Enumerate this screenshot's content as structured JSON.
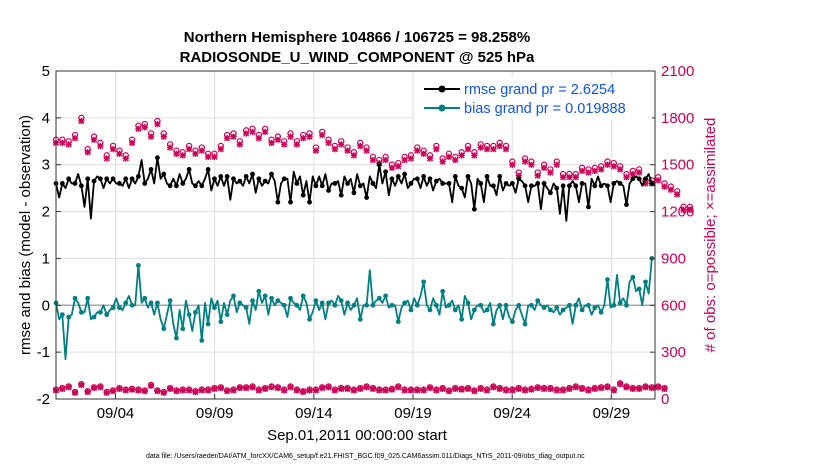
{
  "chart_data": {
    "type": "line",
    "title_line1": "Northern Hemisphere 104866 / 106725 = 98.258%",
    "title_line2": "RADIOSONDE_U_WIND_COMPONENT @ 525 hPa",
    "xlabel": "Sep.01,2011 00:00:00 start",
    "ylabel_left": "rmse and bias (model - observation)",
    "ylabel_right": "# of obs: o=possible; ×=assimilated",
    "footnote": "data file: /Users/raeder/DAI/ATM_forcXX/CAM6_setup/f.e21.FHIST_BGC.f09_025.CAM6assim.011/Diags_NTrS_2011-09/obs_diag_output.nc",
    "x_ticks": [
      "09/04",
      "09/09",
      "09/14",
      "09/19",
      "09/24",
      "09/29"
    ],
    "x_tick_days": [
      4,
      9,
      14,
      19,
      24,
      29
    ],
    "xlim_days": [
      1,
      31.2
    ],
    "ylim_left": [
      -2,
      5
    ],
    "yticks_left": [
      "-2",
      "-1",
      "0",
      "1",
      "2",
      "3",
      "4",
      "5"
    ],
    "ylim_right": [
      0,
      2100
    ],
    "yticks_right": [
      "0",
      "300",
      "600",
      "900",
      "1200",
      "1500",
      "1800",
      "2100"
    ],
    "colors": {
      "rmse": "#000000",
      "bias": "#008080",
      "obs": "#cc0055",
      "legend_text": "#1155dd",
      "zero_line": "#999999",
      "grid": "#dddddd"
    },
    "legend": [
      {
        "label": "rmse grand pr = 2.6254",
        "series": "rmse"
      },
      {
        "label": "bias grand pr = 0.019888",
        "series": "bias"
      }
    ],
    "series": [
      {
        "name": "rmse",
        "axis": "left",
        "values": [
          2.6,
          2.3,
          2.6,
          2.5,
          2.7,
          2.6,
          2.6,
          2.8,
          2.55,
          2.1,
          2.7,
          1.85,
          2.65,
          2.75,
          2.7,
          2.5,
          2.7,
          2.6,
          2.7,
          2.6,
          2.6,
          2.55,
          2.7,
          2.5,
          2.7,
          2.6,
          2.75,
          3.1,
          2.6,
          2.7,
          2.9,
          2.6,
          3.15,
          2.7,
          2.8,
          2.6,
          2.55,
          2.7,
          2.55,
          2.8,
          2.6,
          2.7,
          2.9,
          2.6,
          2.55,
          2.65,
          2.55,
          2.7,
          2.9,
          2.45,
          2.7,
          2.55,
          2.75,
          2.55,
          2.75,
          2.25,
          2.7,
          2.6,
          2.65,
          2.55,
          2.75,
          2.6,
          2.8,
          2.4,
          2.7,
          2.55,
          2.65,
          2.6,
          2.8,
          2.65,
          2.2,
          2.6,
          2.7,
          2.7,
          2.2,
          2.85,
          2.6,
          2.75,
          2.35,
          2.65,
          2.2,
          2.75,
          2.55,
          2.75,
          2.55,
          2.8,
          2.45,
          2.6,
          2.6,
          2.65,
          2.35,
          2.75,
          2.6,
          2.7,
          2.4,
          2.8,
          2.55,
          2.6,
          2.3,
          2.75,
          2.6,
          2.5,
          3.0,
          2.6,
          2.85,
          2.35,
          2.7,
          2.55,
          2.75,
          2.6,
          2.8,
          2.5,
          2.6,
          2.7,
          2.7,
          2.5,
          2.75,
          2.55,
          2.7,
          2.45,
          2.65,
          2.7,
          2.6,
          2.6,
          2.6,
          2.2,
          2.75,
          2.55,
          2.5,
          2.3,
          2.75,
          2.6,
          2.05,
          2.7,
          2.6,
          2.2,
          2.75,
          2.55,
          2.55,
          2.35,
          2.75,
          2.45,
          2.6,
          2.55,
          2.6,
          2.4,
          2.7,
          2.65,
          2.55,
          2.2,
          2.55,
          2.55,
          2.6,
          2.05,
          2.6,
          2.5,
          2.4,
          2.6,
          2.5,
          1.95,
          2.55,
          1.8,
          2.55,
          2.65,
          2.55,
          2.2,
          2.6,
          2.6,
          2.1,
          2.7,
          2.55,
          2.75,
          2.55,
          2.6,
          2.55,
          2.2,
          2.6,
          2.65,
          2.6,
          2.55,
          2.15,
          2.6,
          2.7,
          2.75,
          2.7,
          2.55,
          2.7,
          2.8,
          2.6,
          2.55
        ]
      },
      {
        "name": "bias",
        "axis": "left",
        "values": [
          0.05,
          -0.3,
          -0.2,
          -1.15,
          -0.25,
          -0.2,
          0.15,
          0.05,
          -0.15,
          -0.15,
          0.15,
          -0.3,
          -0.25,
          -0.15,
          -0.15,
          0.0,
          -0.2,
          -0.1,
          -0.05,
          0.15,
          -0.05,
          -0.1,
          0.05,
          0.2,
          0.0,
          0.0,
          0.85,
          0.05,
          0.15,
          -0.05,
          0.05,
          -0.2,
          0.05,
          -0.3,
          -0.5,
          -0.2,
          0.1,
          -0.4,
          -0.7,
          -0.1,
          -0.5,
          0.1,
          -0.2,
          -0.55,
          -0.15,
          0.0,
          -0.75,
          0.05,
          -0.4,
          0.15,
          -0.05,
          0.1,
          -0.35,
          0.05,
          -0.2,
          0.1,
          0.2,
          -0.15,
          0.05,
          0.0,
          -0.05,
          -0.4,
          0.1,
          -0.1,
          0.3,
          0.05,
          0.2,
          -0.2,
          0.15,
          0.0,
          0.1,
          0.05,
          0.0,
          -0.25,
          0.15,
          0.05,
          0.0,
          -0.1,
          0.2,
          0.05,
          -0.3,
          -0.15,
          0.1,
          -0.1,
          0.05,
          -0.3,
          0.05,
          0.1,
          0.0,
          0.2,
          0.1,
          -0.2,
          0.05,
          -0.1,
          0.0,
          0.15,
          -0.3,
          0.0,
          0.0,
          0.75,
          0.0,
          0.1,
          0.15,
          0.05,
          0.2,
          -0.05,
          0.0,
          0.0,
          -0.35,
          -0.05,
          0.05,
          0.1,
          -0.1,
          0.15,
          0.0,
          0.2,
          0.5,
          0.0,
          -0.1,
          0.15,
          0.0,
          -0.2,
          0.3,
          -0.05,
          0.0,
          0.1,
          -0.1,
          0.0,
          -0.3,
          0.2,
          0.05,
          -0.3,
          -0.1,
          0.0,
          0.0,
          -0.15,
          -0.1,
          0.05,
          -0.4,
          -0.1,
          0.0,
          -0.3,
          0.0,
          -0.25,
          -0.35,
          -0.1,
          0.0,
          -0.2,
          -0.4,
          0.0,
          0.0,
          -0.1,
          0.1,
          0.0,
          -0.05,
          0.0,
          -0.1,
          -0.15,
          -0.05,
          -0.2,
          -0.1,
          -0.05,
          0.0,
          -0.4,
          0.0,
          0.15,
          -0.1,
          0.0,
          0.0,
          -0.2,
          -0.05,
          0.0,
          -0.15,
          0.0,
          0.55,
          -0.05,
          0.0,
          0.65,
          0.05,
          0.15,
          0.0,
          0.5,
          0.6,
          0.3,
          0.35,
          0.0,
          0.5,
          0.25,
          1.0
        ]
      },
      {
        "name": "obs_possible",
        "axis": "right",
        "values": [
          1660,
          1680,
          1660,
          1680,
          1650,
          1670,
          1690,
          1640,
          1800,
          1690,
          1600,
          1660,
          1680,
          1660,
          1640,
          1600,
          1560,
          1610,
          1620,
          1580,
          1590,
          1620,
          1560,
          1600,
          1660,
          1780,
          1750,
          1720,
          1760,
          1750,
          1700,
          1740,
          1780,
          1760,
          1700,
          1670,
          1630,
          1620,
          1590,
          1640,
          1580,
          1610,
          1620,
          1580,
          1590,
          1610,
          1610,
          1630,
          1570,
          1620,
          1570,
          1580,
          1620,
          1640,
          1690,
          1700,
          1700,
          1690,
          1650,
          1680,
          1720,
          1760,
          1730,
          1700,
          1690,
          1700,
          1730,
          1670,
          1660,
          1640,
          1680,
          1690,
          1650,
          1700,
          1700,
          1680,
          1650,
          1690,
          1690,
          1640,
          1700,
          1670,
          1610,
          1650,
          1710,
          1700,
          1660,
          1640,
          1620,
          1600,
          1650,
          1590,
          1610,
          1580,
          1580,
          1600,
          1640,
          1630,
          1610,
          1580,
          1550,
          1560,
          1530,
          1590,
          1550,
          1550,
          1500,
          1550,
          1510,
          1560,
          1550,
          1590,
          1560,
          1550,
          1610,
          1580,
          1590,
          1610,
          1560,
          1580,
          1620,
          1600,
          1540,
          1580,
          1570,
          1560,
          1550,
          1520,
          1580,
          1550,
          1620,
          1620,
          1580,
          1640,
          1630,
          1590,
          1620,
          1640,
          1620,
          1600,
          1640,
          1580,
          1620,
          1560,
          1520,
          1520,
          1450,
          1450,
          1540,
          1500,
          1520,
          1500,
          1450,
          1460,
          1500,
          1480,
          1470,
          1460,
          1520,
          1480,
          1440,
          1470,
          1440,
          1470,
          1440,
          1510,
          1480,
          1520,
          1470,
          1510,
          1480,
          1540,
          1490,
          1480,
          1520,
          1490,
          1510,
          1460,
          1490,
          1430,
          1440,
          1410,
          1460,
          1420,
          1470,
          1440,
          1400,
          1430,
          1400,
          1380,
          1420,
          1360,
          1380,
          1410,
          1360,
          1390,
          1330,
          1260,
          1230,
          1250,
          1230
        ]
      },
      {
        "name": "obs_assimilated",
        "axis": "right",
        "values": [
          1640,
          1660,
          1640,
          1660,
          1630,
          1650,
          1670,
          1620,
          1780,
          1670,
          1580,
          1640,
          1660,
          1640,
          1620,
          1580,
          1540,
          1590,
          1600,
          1560,
          1570,
          1600,
          1540,
          1580,
          1640,
          1760,
          1730,
          1700,
          1740,
          1730,
          1680,
          1720,
          1760,
          1740,
          1680,
          1650,
          1610,
          1600,
          1570,
          1620,
          1560,
          1590,
          1600,
          1560,
          1570,
          1590,
          1590,
          1610,
          1550,
          1600,
          1550,
          1560,
          1600,
          1620,
          1670,
          1680,
          1680,
          1670,
          1630,
          1660,
          1700,
          1740,
          1710,
          1680,
          1670,
          1680,
          1710,
          1650,
          1640,
          1620,
          1660,
          1670,
          1630,
          1680,
          1680,
          1660,
          1630,
          1670,
          1670,
          1620,
          1680,
          1650,
          1590,
          1630,
          1690,
          1680,
          1640,
          1620,
          1600,
          1580,
          1630,
          1570,
          1590,
          1560,
          1560,
          1580,
          1620,
          1610,
          1590,
          1560,
          1530,
          1540,
          1510,
          1570,
          1530,
          1530,
          1480,
          1530,
          1490,
          1540,
          1530,
          1570,
          1540,
          1530,
          1590,
          1560,
          1570,
          1590,
          1540,
          1560,
          1600,
          1580,
          1520,
          1560,
          1550,
          1540,
          1530,
          1500,
          1560,
          1530,
          1600,
          1600,
          1560,
          1620,
          1610,
          1570,
          1600,
          1620,
          1600,
          1580,
          1620,
          1560,
          1600,
          1540,
          1500,
          1500,
          1430,
          1430,
          1520,
          1480,
          1500,
          1480,
          1430,
          1440,
          1480,
          1460,
          1450,
          1440,
          1500,
          1460,
          1420,
          1450,
          1420,
          1450,
          1420,
          1490,
          1460,
          1500,
          1450,
          1490,
          1460,
          1520,
          1470,
          1460,
          1500,
          1470,
          1490,
          1440,
          1470,
          1410,
          1420,
          1390,
          1440,
          1400,
          1450,
          1420,
          1380,
          1410,
          1380,
          1360,
          1400,
          1340,
          1360,
          1390,
          1340,
          1370,
          1310,
          1240,
          1210,
          1230,
          1210
        ]
      },
      {
        "name": "obs_low_possible",
        "axis": "right",
        "values": [
          60,
          50,
          70,
          55,
          80,
          60,
          45,
          65,
          95,
          70,
          50,
          55,
          75,
          60,
          80,
          60,
          45,
          75,
          55,
          60,
          70,
          45,
          60,
          75,
          65,
          90,
          60,
          75,
          55,
          70,
          90,
          70,
          55,
          70,
          45,
          70,
          70,
          80,
          55,
          70,
          60,
          75,
          60,
          70,
          50,
          60,
          60,
          80,
          60,
          70,
          70,
          90,
          75,
          70,
          55,
          60,
          60,
          65,
          75,
          55,
          75,
          65,
          80,
          55,
          60,
          70,
          70,
          60,
          80,
          60,
          75,
          55,
          60,
          65,
          80,
          70,
          60,
          75,
          50,
          70,
          60,
          70,
          60,
          70,
          75,
          70,
          80,
          60,
          60,
          65,
          70,
          75,
          70,
          60,
          60,
          55,
          70,
          75,
          80,
          60,
          70,
          75,
          60,
          80,
          60,
          70,
          65,
          60,
          80,
          75,
          60,
          70,
          60,
          70,
          60,
          80,
          60,
          70,
          75,
          70,
          60,
          70,
          70,
          60,
          55,
          75,
          70,
          60,
          65,
          50,
          70,
          60,
          55,
          60,
          70,
          75,
          60,
          70,
          80,
          70,
          70,
          60,
          60,
          75,
          60,
          70,
          70,
          60,
          60,
          75,
          65,
          70,
          75,
          60,
          70,
          55,
          70,
          80,
          60,
          70,
          60,
          65,
          70,
          60,
          80,
          60,
          70,
          75,
          60,
          70,
          70,
          70,
          75,
          70,
          80,
          80,
          60,
          65,
          100,
          95,
          80,
          90,
          70,
          80,
          70,
          60,
          80,
          70,
          75,
          55,
          80,
          50,
          70,
          0
        ]
      },
      {
        "name": "obs_low_assimilated",
        "axis": "right",
        "values": [
          55,
          45,
          65,
          50,
          75,
          55,
          40,
          60,
          90,
          65,
          45,
          50,
          70,
          55,
          75,
          55,
          40,
          70,
          50,
          55,
          65,
          40,
          55,
          70,
          60,
          85,
          55,
          70,
          50,
          65,
          85,
          65,
          50,
          65,
          40,
          65,
          65,
          75,
          50,
          65,
          55,
          70,
          55,
          65,
          45,
          55,
          55,
          75,
          55,
          65,
          65,
          85,
          70,
          65,
          50,
          55,
          55,
          60,
          70,
          50,
          70,
          60,
          75,
          50,
          55,
          65,
          65,
          55,
          75,
          55,
          70,
          50,
          55,
          60,
          75,
          65,
          55,
          70,
          45,
          65,
          55,
          65,
          55,
          65,
          70,
          65,
          75,
          55,
          55,
          60,
          65,
          70,
          65,
          55,
          55,
          50,
          65,
          70,
          75,
          55,
          65,
          70,
          55,
          75,
          55,
          65,
          60,
          55,
          75,
          70,
          55,
          65,
          55,
          65,
          55,
          75,
          55,
          65,
          70,
          65,
          55,
          65,
          65,
          55,
          50,
          70,
          65,
          55,
          60,
          45,
          65,
          55,
          50,
          55,
          65,
          70,
          55,
          65,
          75,
          65,
          65,
          55,
          55,
          70,
          55,
          65,
          65,
          55,
          55,
          70,
          60,
          65,
          70,
          55,
          65,
          50,
          65,
          75,
          55,
          65,
          55,
          60,
          65,
          55,
          75,
          55,
          65,
          70,
          55,
          65,
          65,
          65,
          70,
          65,
          75,
          75,
          55,
          60,
          95,
          90,
          75,
          85,
          65,
          75,
          65,
          55,
          75,
          65,
          70,
          50,
          75,
          45,
          65,
          0
        ]
      }
    ]
  }
}
